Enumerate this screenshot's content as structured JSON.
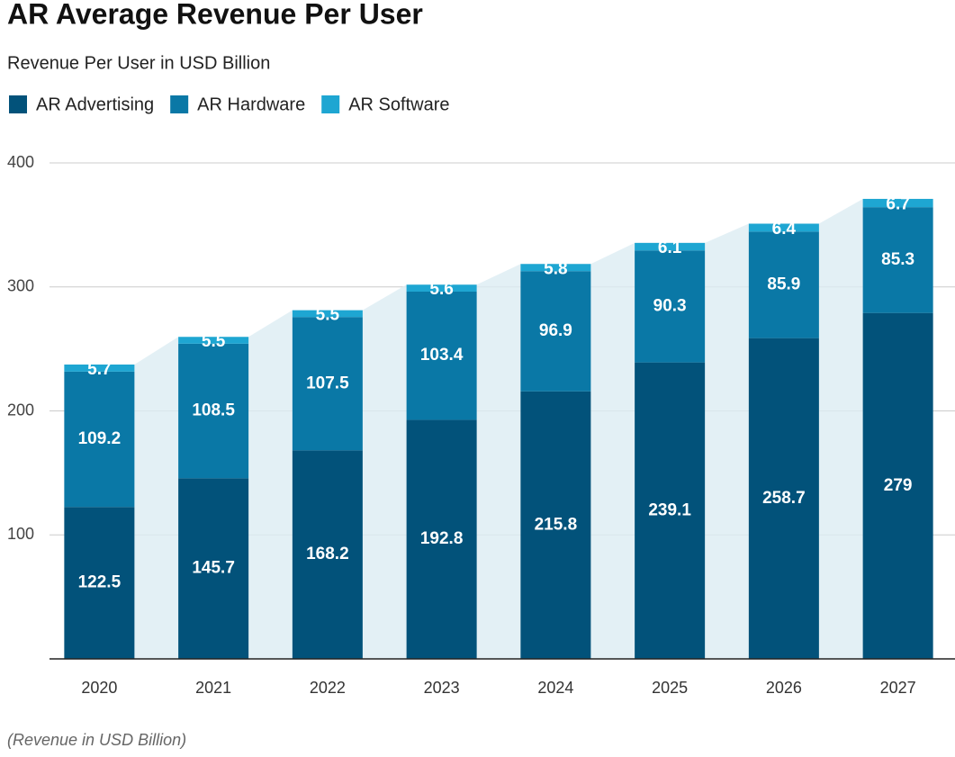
{
  "chart_data": {
    "type": "stacked-bar",
    "title": "AR Average Revenue Per User",
    "subtitle": "Revenue Per User in USD Billion",
    "note": "(Revenue in USD Billion)",
    "categories": [
      "2020",
      "2021",
      "2022",
      "2023",
      "2024",
      "2025",
      "2026",
      "2027"
    ],
    "series": [
      {
        "name": "AR Advertising",
        "color": "#02527a",
        "values": [
          122.5,
          145.7,
          168.2,
          192.8,
          215.8,
          239.1,
          258.7,
          279
        ]
      },
      {
        "name": "AR Hardware",
        "color": "#0a78a6",
        "values": [
          109.2,
          108.5,
          107.5,
          103.4,
          96.9,
          90.3,
          85.9,
          85.3
        ]
      },
      {
        "name": "AR Software",
        "color": "#1ea6d2",
        "values": [
          5.7,
          5.5,
          5.5,
          5.6,
          5.8,
          6.1,
          6.4,
          6.7
        ]
      }
    ],
    "ylim": [
      0,
      400
    ],
    "yticks": [
      100,
      200,
      300,
      400
    ],
    "grid": true
  }
}
